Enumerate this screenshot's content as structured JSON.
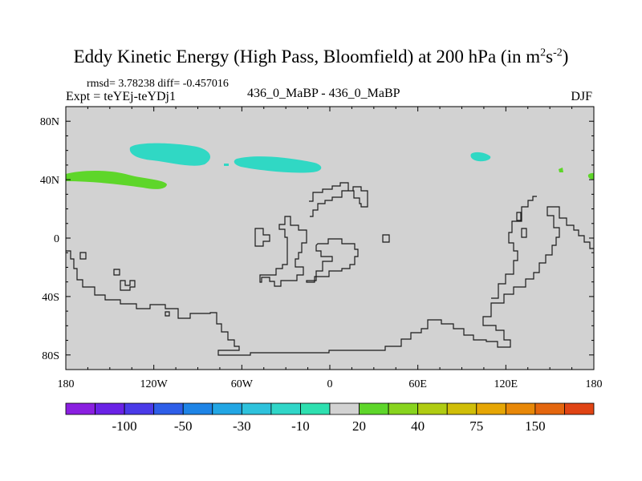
{
  "title_main": "Eddy Kinetic Energy (High Pass, Bloomfield) at 200 hPa (in m",
  "title_sup1": "2",
  "title_mid": "s",
  "title_sup2": "-2",
  "title_end": ")",
  "stats": "rmsd= 3.78238 diff= -0.457016",
  "expt": "Expt = teYEj-teYDj1",
  "cases": "436_0_MaBP - 436_0_MaBP",
  "season": "DJF",
  "chart_data": {
    "type": "heatmap",
    "title": "Eddy Kinetic Energy (High Pass, Bloomfield) at 200 hPa (in m2s-2)",
    "projection": "cylindrical-equidistant",
    "background_value_bin": "-10 to 20",
    "xlim": [
      -180,
      180
    ],
    "ylim": [
      -90,
      90
    ],
    "x_ticks": [
      {
        "value": -180,
        "label": "180"
      },
      {
        "value": -120,
        "label": "120W"
      },
      {
        "value": -60,
        "label": "60W"
      },
      {
        "value": 0,
        "label": "0"
      },
      {
        "value": 60,
        "label": "60E"
      },
      {
        "value": 120,
        "label": "120E"
      },
      {
        "value": 180,
        "label": "180"
      }
    ],
    "y_ticks": [
      {
        "value": 80,
        "label": "80N"
      },
      {
        "value": 40,
        "label": "40N"
      },
      {
        "value": 0,
        "label": "0"
      },
      {
        "value": -40,
        "label": "40S"
      },
      {
        "value": -80,
        "label": "80S"
      }
    ],
    "colorbar": {
      "colors": [
        "#8a1fe0",
        "#6a22e6",
        "#4a3ae8",
        "#2e5ee8",
        "#1e84e6",
        "#22a6e4",
        "#2ec2dc",
        "#30d6c8",
        "#2ee0b0",
        "#d2d2d2",
        "#5ed62a",
        "#88d41e",
        "#b0cc12",
        "#d0be08",
        "#e6a604",
        "#e88808",
        "#e4660e",
        "#e04414"
      ],
      "labels": [
        "-100",
        "-50",
        "-30",
        "-10",
        "20",
        "40",
        "75",
        "150"
      ]
    },
    "anomaly_regions": [
      {
        "bin": "-30 to -10",
        "color": "#30d8c4",
        "lon_range": [
          -140,
          -95
        ],
        "lat_range": [
          52,
          63
        ]
      },
      {
        "bin": "-30 to -10",
        "color": "#30d8c4",
        "lon_range": [
          -75,
          -8
        ],
        "lat_range": [
          44,
          55
        ]
      },
      {
        "bin": "-30 to -10",
        "color": "#30d8c4",
        "lon_range": [
          95,
          108
        ],
        "lat_range": [
          52,
          58
        ]
      },
      {
        "bin": "20 to 30",
        "color": "#5ed62a",
        "lon_range": [
          -180,
          -130
        ],
        "lat_range": [
          34,
          46
        ]
      },
      {
        "bin": "20 to 30",
        "color": "#5ed62a",
        "lon_range": [
          157,
          160
        ],
        "lat_range": [
          45,
          48
        ]
      },
      {
        "bin": "20 to 30",
        "color": "#5ed62a",
        "lon_range": [
          177,
          180
        ],
        "lat_range": [
          40,
          44
        ]
      }
    ]
  }
}
